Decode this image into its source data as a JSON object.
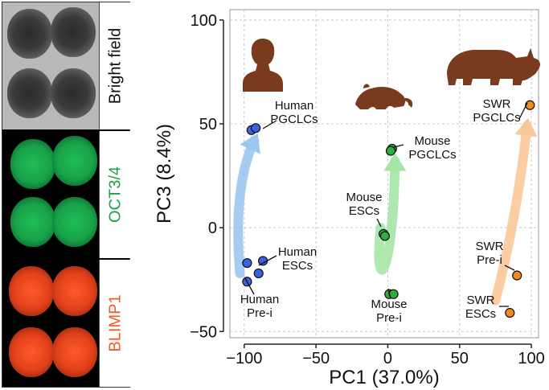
{
  "microscopy": {
    "labels": [
      "Bright field",
      "OCT3/4",
      "BLIMP1"
    ],
    "label_colors": [
      "#111111",
      "#1aa34a",
      "#f25a28"
    ]
  },
  "chart_data": {
    "type": "scatter",
    "xlabel": "PC1 (37.0%)",
    "ylabel": "PC3 (8.4%)",
    "xlim": [
      -110,
      105
    ],
    "ylim": [
      -53,
      105
    ],
    "xticks": [
      -100,
      -50,
      0,
      50,
      100
    ],
    "yticks": [
      -50,
      0,
      50,
      100
    ],
    "xtick_labels": [
      "−100",
      "−50",
      "0",
      "50",
      "100"
    ],
    "ytick_labels": [
      "−50",
      "0",
      "50",
      "100"
    ],
    "grid": true,
    "series": [
      {
        "name": "Human",
        "color": "#3b62e0",
        "points": [
          {
            "x": -98,
            "y": -17
          },
          {
            "x": -87,
            "y": -16
          },
          {
            "x": -90,
            "y": -22
          },
          {
            "x": -98,
            "y": -26
          },
          {
            "x": -95,
            "y": 47
          },
          {
            "x": -92,
            "y": 48
          }
        ]
      },
      {
        "name": "Mouse",
        "color": "#2fae3f",
        "points": [
          {
            "x": -3,
            "y": -3
          },
          {
            "x": -2,
            "y": -4
          },
          {
            "x": 1,
            "y": -32
          },
          {
            "x": 4,
            "y": -32
          },
          {
            "x": 3,
            "y": 38
          },
          {
            "x": 2,
            "y": 37
          }
        ]
      },
      {
        "name": "SWR",
        "color": "#f08a1f",
        "points": [
          {
            "x": 85,
            "y": -41
          },
          {
            "x": 90,
            "y": -23
          },
          {
            "x": 99,
            "y": 59
          }
        ]
      }
    ],
    "annotations": [
      {
        "lines": [
          "Human",
          "PGCLCs"
        ]
      },
      {
        "lines": [
          "Human",
          "ESCs"
        ]
      },
      {
        "lines": [
          "Human",
          "Pre-i"
        ]
      },
      {
        "lines": [
          "Mouse",
          "PGCLCs"
        ]
      },
      {
        "lines": [
          "Mouse",
          "ESCs"
        ]
      },
      {
        "lines": [
          "Mouse",
          "Pre-i"
        ]
      },
      {
        "lines": [
          "SWR",
          "PGCLCs"
        ]
      },
      {
        "lines": [
          "SWR",
          "Pre-i"
        ]
      },
      {
        "lines": [
          "SWR",
          "ESCs"
        ]
      }
    ],
    "arrows": [
      {
        "series": "Human",
        "color": "#9cc8f0",
        "path": [
          [
            -103,
            -22
          ],
          [
            -108,
            20
          ],
          [
            -93,
            42
          ]
        ]
      },
      {
        "series": "Mouse",
        "color": "#a6e5a6",
        "path": [
          [
            -5,
            0
          ],
          [
            -10,
            -35
          ],
          [
            4,
            -25
          ],
          [
            5,
            32
          ]
        ]
      },
      {
        "series": "SWR",
        "color": "#f9c898",
        "path": [
          [
            75,
            -35
          ],
          [
            90,
            5
          ],
          [
            97,
            49
          ]
        ]
      }
    ],
    "icons": [
      "human-silhouette",
      "mouse-silhouette",
      "rhinoceros-silhouette"
    ]
  }
}
